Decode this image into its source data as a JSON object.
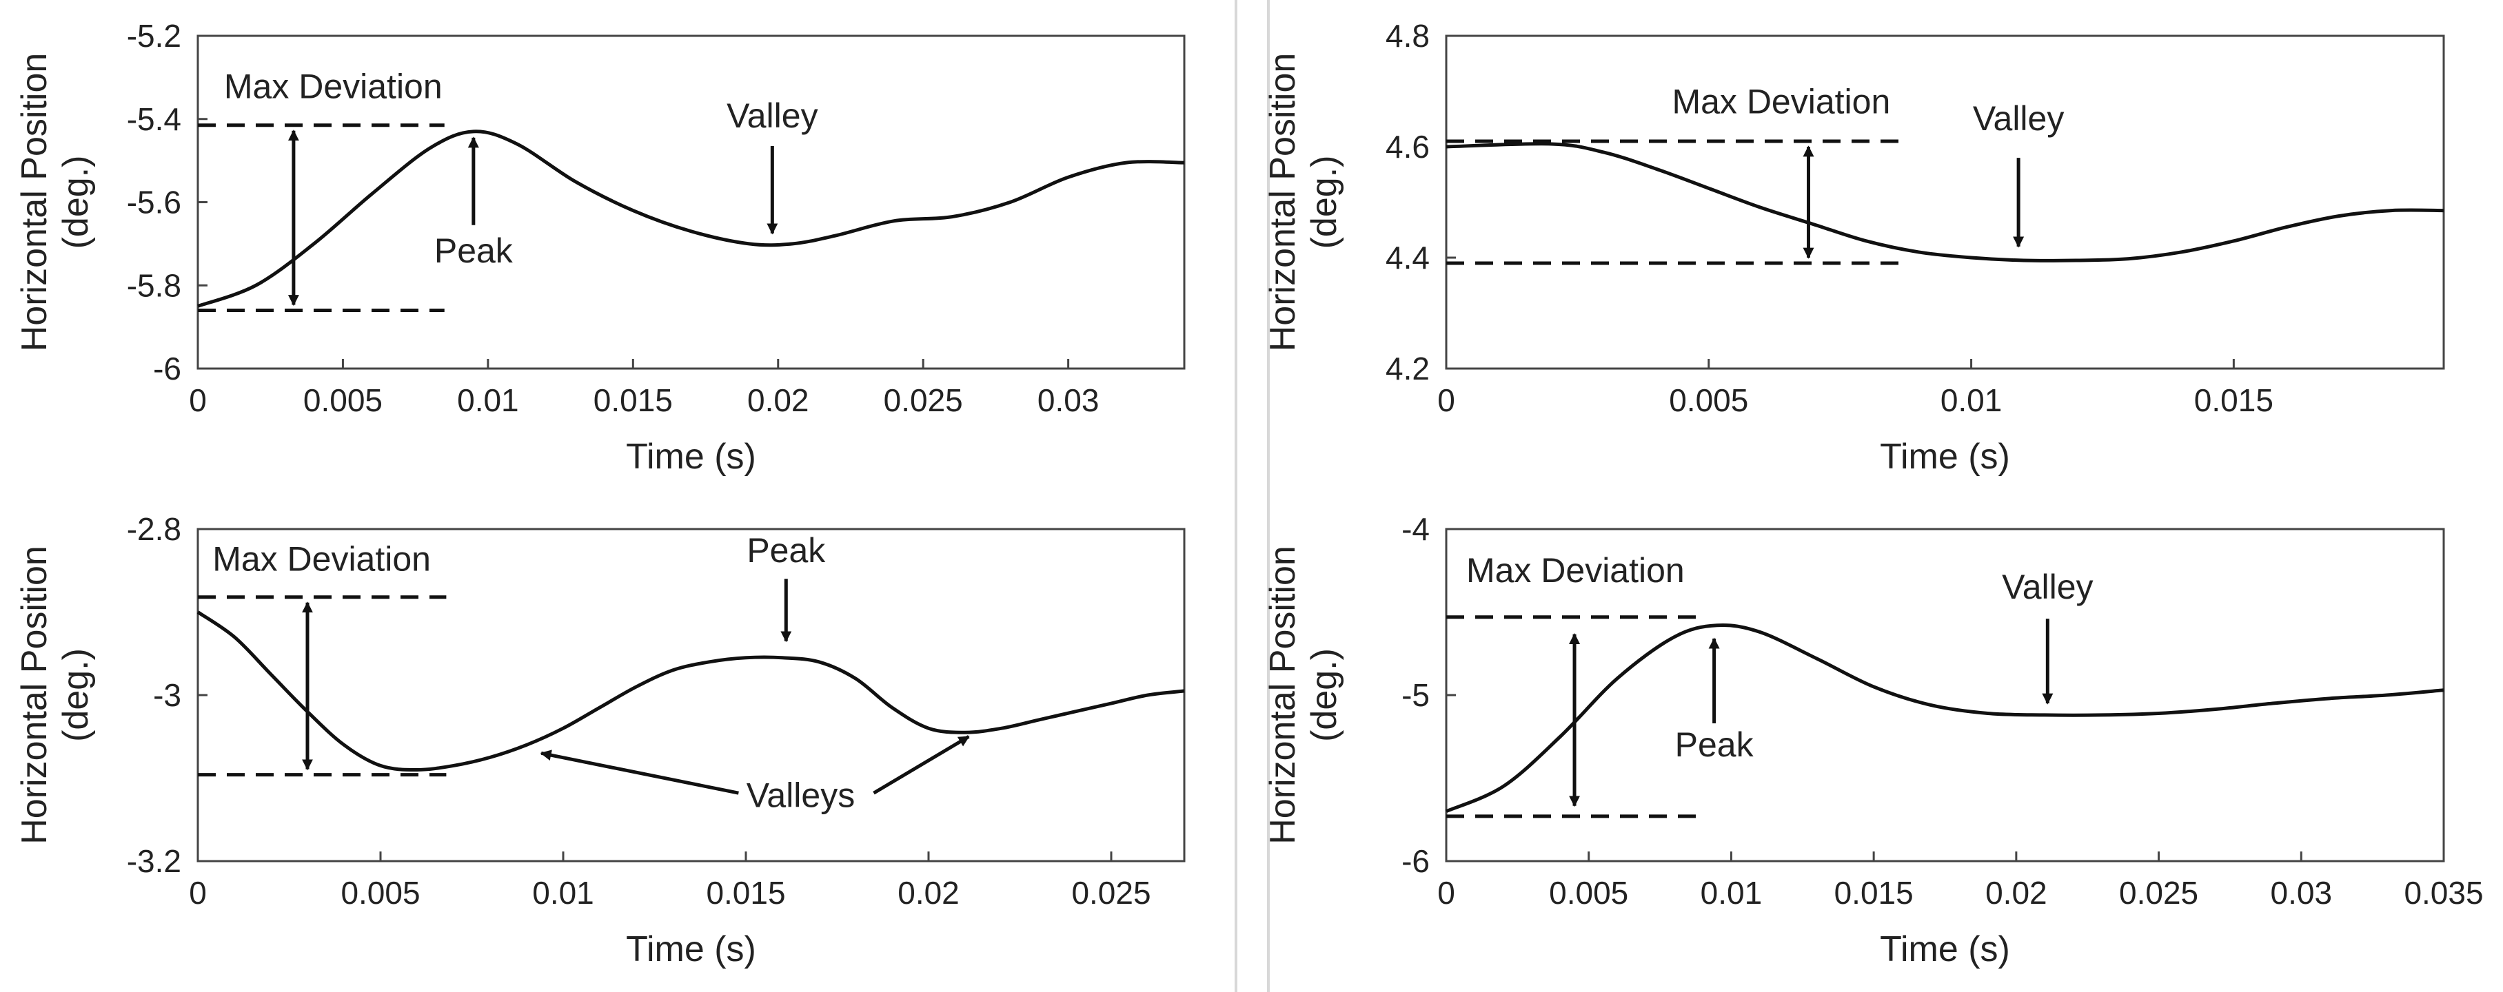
{
  "chart_data": [
    {
      "type": "line",
      "xlabel": "Time (s)",
      "ylabel": "Horizontal Position",
      "ylabel_unit": "(deg.)",
      "xlim": [
        0,
        0.034
      ],
      "ylim": [
        -6,
        -5.2
      ],
      "xticks": [
        0,
        0.005,
        0.01,
        0.015,
        0.02,
        0.025,
        0.03
      ],
      "xtick_labels": [
        "0",
        "0.005",
        "0.01",
        "0.015",
        "0.02",
        "0.025",
        "0.03"
      ],
      "yticks": [
        -6,
        -5.8,
        -5.6,
        -5.4,
        -5.2
      ],
      "ytick_labels": [
        "-6",
        "-5.8",
        "-5.6",
        "-5.4",
        "-5.2"
      ],
      "series": [
        {
          "name": "Horizontal position",
          "x": [
            0,
            0.002,
            0.004,
            0.006,
            0.008,
            0.0095,
            0.011,
            0.013,
            0.015,
            0.017,
            0.019,
            0.0205,
            0.022,
            0.024,
            0.026,
            0.028,
            0.03,
            0.032,
            0.034
          ],
          "y": [
            -5.85,
            -5.8,
            -5.7,
            -5.58,
            -5.47,
            -5.43,
            -5.46,
            -5.55,
            -5.62,
            -5.67,
            -5.7,
            -5.7,
            -5.68,
            -5.645,
            -5.635,
            -5.6,
            -5.54,
            -5.505,
            -5.505
          ]
        }
      ],
      "dev_lines": [
        {
          "x0": 0,
          "x1": 0.0085,
          "y": -5.415
        },
        {
          "x0": 0,
          "x1": 0.0085,
          "y": -5.86
        }
      ],
      "dev_arrow": {
        "x": 0.0033,
        "y0": -5.415,
        "y1": -5.86
      },
      "labels": [
        {
          "text": "Max Deviation",
          "x": 0.0009,
          "y": -5.35
        },
        {
          "text": "Peak",
          "x": 0.0095,
          "y": -5.745
        },
        {
          "text": "Valley",
          "x": 0.0198,
          "y": -5.42
        }
      ],
      "arrows": [
        {
          "x0": 0.0095,
          "y0": -5.655,
          "x1": 0.0095,
          "y1": -5.445
        },
        {
          "x0": 0.0198,
          "y0": -5.465,
          "x1": 0.0198,
          "y1": -5.675
        }
      ]
    },
    {
      "type": "line",
      "xlabel": "Time (s)",
      "ylabel": "Horizontal Position",
      "ylabel_unit": "(deg.)",
      "xlim": [
        0,
        0.019
      ],
      "ylim": [
        4.2,
        4.8
      ],
      "xticks": [
        0,
        0.005,
        0.01,
        0.015
      ],
      "xtick_labels": [
        "0",
        "0.005",
        "0.01",
        "0.015"
      ],
      "yticks": [
        4.2,
        4.4,
        4.6,
        4.8
      ],
      "ytick_labels": [
        "4.2",
        "4.4",
        "4.6",
        "4.8"
      ],
      "series": [
        {
          "name": "Horizontal position",
          "x": [
            0,
            0.002,
            0.003,
            0.004,
            0.005,
            0.006,
            0.007,
            0.008,
            0.009,
            0.01,
            0.011,
            0.012,
            0.013,
            0.014,
            0.015,
            0.016,
            0.017,
            0.018,
            0.019
          ],
          "y": [
            4.6,
            4.605,
            4.59,
            4.56,
            4.525,
            4.49,
            4.46,
            4.43,
            4.41,
            4.4,
            4.395,
            4.395,
            4.398,
            4.41,
            4.43,
            4.455,
            4.475,
            4.485,
            4.485
          ]
        }
      ],
      "dev_lines": [
        {
          "x0": 0,
          "x1": 0.0087,
          "y": 4.61
        },
        {
          "x0": 0,
          "x1": 0.0087,
          "y": 4.39
        }
      ],
      "dev_arrow": {
        "x": 0.0069,
        "y0": 4.61,
        "y1": 4.39
      },
      "labels": [
        {
          "text": "Max Deviation",
          "x": 0.0043,
          "y": 4.66
        },
        {
          "text": "Valley",
          "x": 0.0109,
          "y": 4.63
        }
      ],
      "arrows": [
        {
          "x0": 0.0109,
          "y0": 4.58,
          "x1": 0.0109,
          "y1": 4.42
        }
      ]
    },
    {
      "type": "line",
      "xlabel": "Time (s)",
      "ylabel": "Horizontal Position",
      "ylabel_unit": "(deg.)",
      "xlim": [
        0,
        0.027
      ],
      "ylim": [
        -3.2,
        -2.8
      ],
      "xticks": [
        0,
        0.005,
        0.01,
        0.015,
        0.02,
        0.025
      ],
      "xtick_labels": [
        "0",
        "0.005",
        "0.01",
        "0.015",
        "0.02",
        "0.025"
      ],
      "yticks": [
        -3.2,
        -3,
        -2.8
      ],
      "ytick_labels": [
        "-3.2",
        "-3",
        "-2.8"
      ],
      "series": [
        {
          "name": "Horizontal position",
          "x": [
            0,
            0.001,
            0.002,
            0.003,
            0.004,
            0.005,
            0.006,
            0.007,
            0.008,
            0.009,
            0.01,
            0.011,
            0.012,
            0.013,
            0.014,
            0.015,
            0.016,
            0.017,
            0.018,
            0.019,
            0.02,
            0.021,
            0.022,
            0.023,
            0.024,
            0.025,
            0.026,
            0.027
          ],
          "y": [
            -2.9,
            -2.93,
            -2.975,
            -3.02,
            -3.06,
            -3.085,
            -3.09,
            -3.085,
            -3.075,
            -3.06,
            -3.04,
            -3.015,
            -2.99,
            -2.97,
            -2.96,
            -2.955,
            -2.955,
            -2.96,
            -2.98,
            -3.015,
            -3.04,
            -3.045,
            -3.04,
            -3.03,
            -3.02,
            -3.01,
            -3.0,
            -2.995
          ]
        }
      ],
      "dev_lines": [
        {
          "x0": 0,
          "x1": 0.0068,
          "y": -2.882
        },
        {
          "x0": 0,
          "x1": 0.0068,
          "y": -3.096
        }
      ],
      "dev_arrow": {
        "x": 0.003,
        "y0": -2.882,
        "y1": -3.096
      },
      "labels": [
        {
          "text": "Max Deviation",
          "x": 0.0004,
          "y": -2.85
        },
        {
          "text": "Peak",
          "x": 0.0161,
          "y": -2.84
        },
        {
          "text": "Valleys",
          "x": 0.0165,
          "y": -3.135
        }
      ],
      "arrows": [
        {
          "x0": 0.0161,
          "y0": -2.86,
          "x1": 0.0161,
          "y1": -2.935
        },
        {
          "x0": 0.0148,
          "y0": -3.118,
          "x1": 0.0094,
          "y1": -3.07
        },
        {
          "x0": 0.0185,
          "y0": -3.118,
          "x1": 0.0211,
          "y1": -3.05
        }
      ]
    },
    {
      "type": "line",
      "xlabel": "Time (s)",
      "ylabel": "Horizontal Position",
      "ylabel_unit": "(deg.)",
      "xlim": [
        0,
        0.035
      ],
      "ylim": [
        -6,
        -4
      ],
      "xticks": [
        0,
        0.005,
        0.01,
        0.015,
        0.02,
        0.025,
        0.03,
        0.035
      ],
      "xtick_labels": [
        "0",
        "0.005",
        "0.01",
        "0.015",
        "0.02",
        "0.025",
        "0.03",
        "0.035"
      ],
      "yticks": [
        -6,
        -5,
        -4
      ],
      "ytick_labels": [
        "-6",
        "-5",
        "-4"
      ],
      "series": [
        {
          "name": "Horizontal position",
          "x": [
            0,
            0.002,
            0.004,
            0.006,
            0.008,
            0.0095,
            0.011,
            0.013,
            0.015,
            0.017,
            0.019,
            0.021,
            0.023,
            0.025,
            0.027,
            0.029,
            0.031,
            0.033,
            0.035
          ],
          "y": [
            -5.7,
            -5.55,
            -5.25,
            -4.9,
            -4.65,
            -4.58,
            -4.62,
            -4.78,
            -4.95,
            -5.06,
            -5.11,
            -5.12,
            -5.12,
            -5.11,
            -5.085,
            -5.05,
            -5.02,
            -5.0,
            -4.97
          ]
        }
      ],
      "dev_lines": [
        {
          "x0": 0,
          "x1": 0.009,
          "y": -4.53
        },
        {
          "x0": 0,
          "x1": 0.009,
          "y": -5.73
        }
      ],
      "dev_arrow": {
        "x": 0.0045,
        "y0": -4.6,
        "y1": -5.7
      },
      "labels": [
        {
          "text": "Max Deviation",
          "x": 0.0007,
          "y": -4.32
        },
        {
          "text": "Peak",
          "x": 0.0094,
          "y": -5.37
        },
        {
          "text": "Valley",
          "x": 0.0211,
          "y": -4.42
        }
      ],
      "arrows": [
        {
          "x0": 0.0094,
          "y0": -5.17,
          "x1": 0.0094,
          "y1": -4.66
        },
        {
          "x0": 0.0211,
          "y0": -4.54,
          "x1": 0.0211,
          "y1": -5.05
        }
      ]
    }
  ]
}
